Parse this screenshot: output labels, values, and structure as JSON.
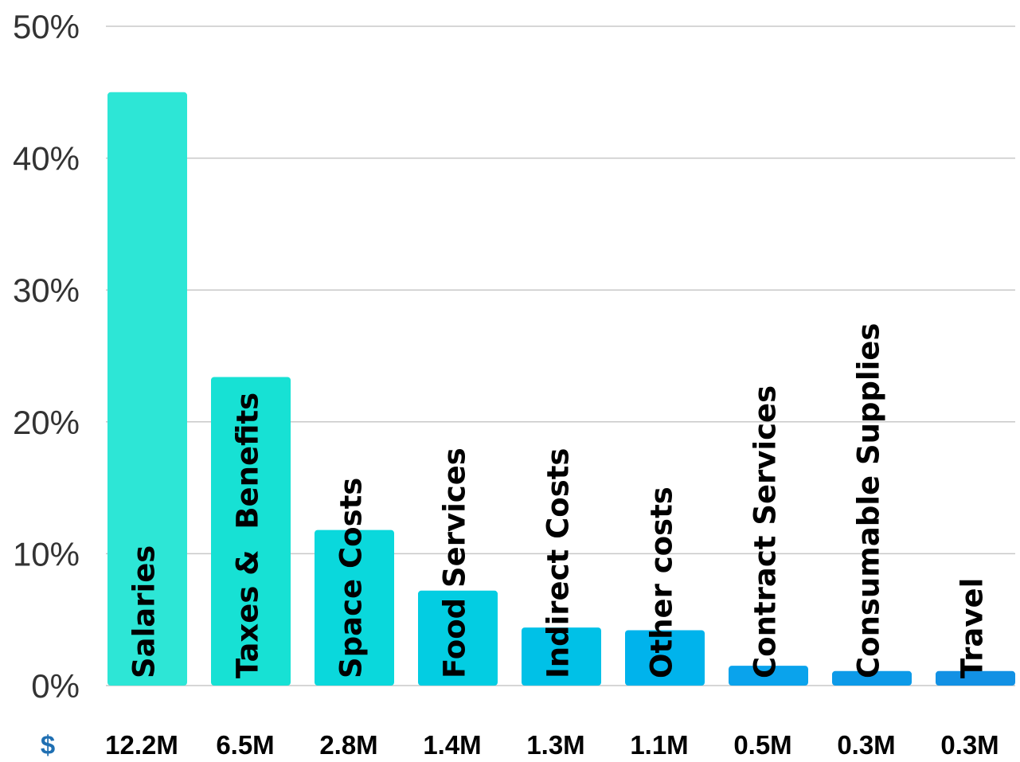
{
  "chart_data": {
    "type": "bar",
    "categories": [
      "Salaries",
      "Taxes &  Benefits",
      "Space Costs",
      "Food Services",
      "Indirect Costs",
      "Other costs",
      "Contract Services",
      "Consumable Supplies",
      "Travel"
    ],
    "values": [
      45,
      23.4,
      11.8,
      7.2,
      4.4,
      4.2,
      1.5,
      1.1,
      1.1
    ],
    "amounts": [
      "12.2M",
      "6.5M",
      "2.8M",
      "1.4M",
      "1.3M",
      "1.1M",
      "0.5M",
      "0.3M",
      "0.3M"
    ],
    "amount_prefix": "$",
    "bar_colors": [
      "#2de6d6",
      "#17e1d4",
      "#0ad8dc",
      "#03cde2",
      "#00c1e7",
      "#00b3ec",
      "#0aa3ec",
      "#0d9ae8",
      "#1291e4"
    ],
    "yticks": [
      "0%",
      "10%",
      "20%",
      "30%",
      "40%",
      "50%"
    ],
    "ylim": [
      0,
      50
    ],
    "grid": true,
    "title": "",
    "xlabel": "",
    "ylabel": ""
  }
}
